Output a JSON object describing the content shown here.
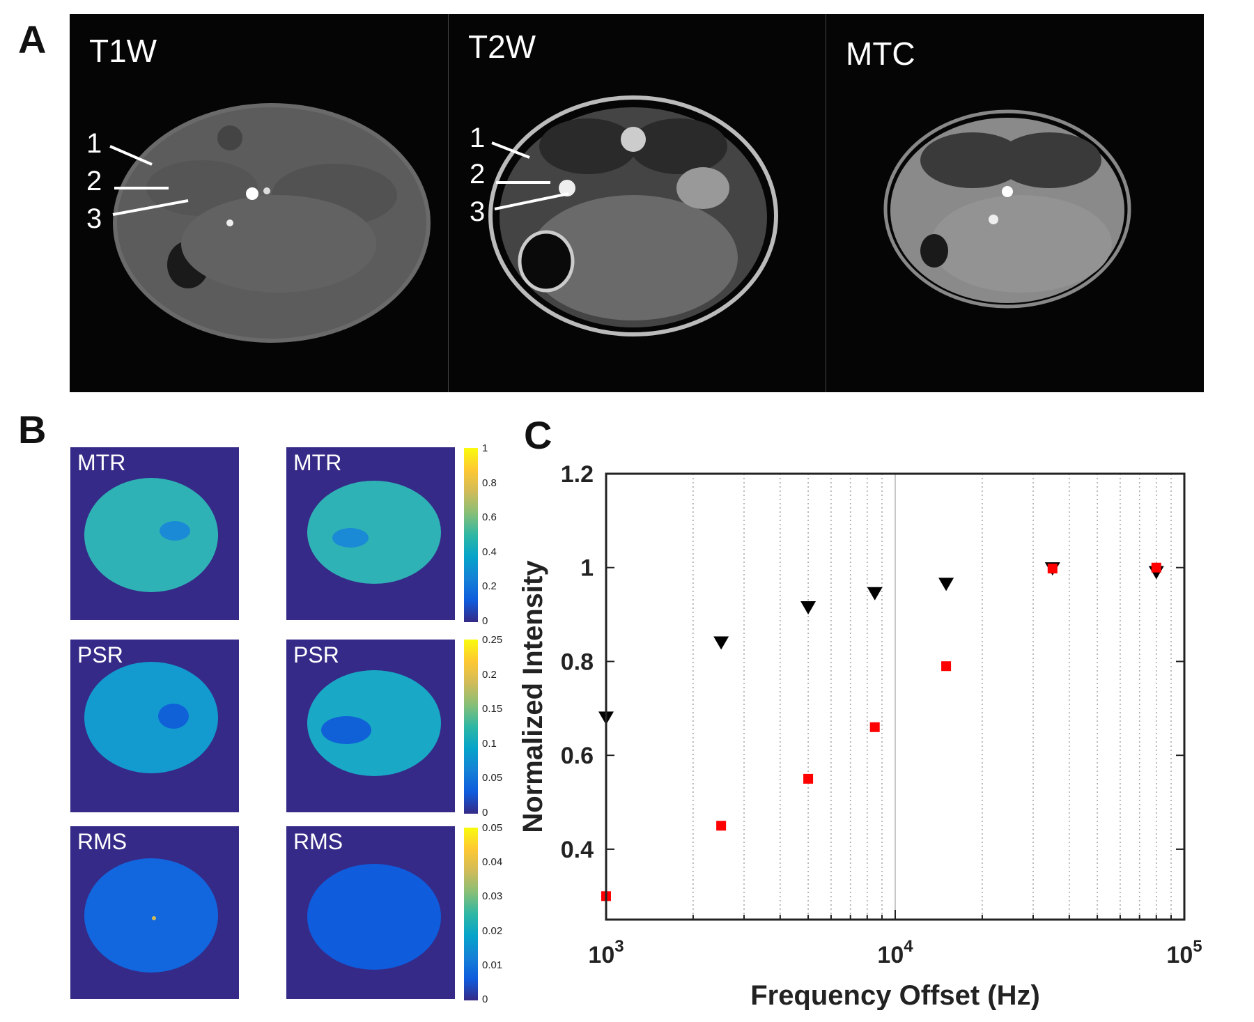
{
  "panels": {
    "a": "A",
    "b": "B",
    "c": "C"
  },
  "panel_a": {
    "images": [
      {
        "label": "T1W",
        "roi_labels": [
          "1",
          "2",
          "3"
        ]
      },
      {
        "label": "T2W",
        "roi_labels": [
          "1",
          "2",
          "3"
        ]
      },
      {
        "label": "MTC"
      }
    ]
  },
  "panel_b": {
    "rows": [
      {
        "label": "MTR",
        "colorbar_ticks": [
          "1",
          "0.8",
          "0.6",
          "0.4",
          "0.2",
          "0"
        ]
      },
      {
        "label": "PSR",
        "colorbar_ticks": [
          "0.25",
          "0.2",
          "0.15",
          "0.1",
          "0.05",
          "0"
        ]
      },
      {
        "label": "RMS",
        "colorbar_ticks": [
          "0.05",
          "0.04",
          "0.03",
          "0.02",
          "0.01",
          "0"
        ]
      }
    ],
    "colormap": [
      "#352a87",
      "#0f5cdd",
      "#1481d6",
      "#06a4ca",
      "#2eb7a4",
      "#87bf77",
      "#d1bb59",
      "#fec832",
      "#f9fb0e"
    ]
  },
  "chart_data": {
    "type": "scatter",
    "xscale": "log",
    "xlim": [
      1000,
      100000
    ],
    "ylim": [
      0.25,
      1.2
    ],
    "xlabel": "Frequency Offset (Hz)",
    "ylabel": "Normalized Intensity",
    "xticks": [
      {
        "value": 1000,
        "base": "10",
        "exp": "3"
      },
      {
        "value": 10000,
        "base": "10",
        "exp": "4"
      },
      {
        "value": 100000,
        "base": "10",
        "exp": "5"
      }
    ],
    "yticks": [
      {
        "value": 0.4,
        "label": "0.4"
      },
      {
        "value": 0.6,
        "label": "0.6"
      },
      {
        "value": 0.8,
        "label": "0.8"
      },
      {
        "value": 1.0,
        "label": "1"
      },
      {
        "value": 1.2,
        "label": "1.2"
      }
    ],
    "series": [
      {
        "name": "black triangles",
        "marker": "triangle-down",
        "color": "#000000",
        "x": [
          1000,
          2500,
          5000,
          8500,
          15000,
          35000,
          80000
        ],
        "y": [
          0.68,
          0.84,
          0.915,
          0.945,
          0.965,
          0.998,
          0.99
        ]
      },
      {
        "name": "red squares",
        "marker": "square",
        "color": "#ff0000",
        "x": [
          1000,
          2500,
          5000,
          8500,
          15000,
          35000,
          80000
        ],
        "y": [
          0.3,
          0.45,
          0.55,
          0.66,
          0.79,
          0.998,
          1.0
        ]
      }
    ]
  }
}
